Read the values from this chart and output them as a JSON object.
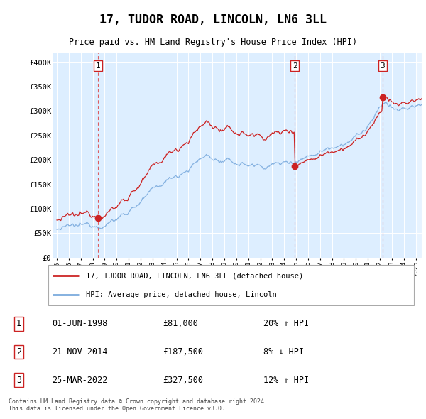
{
  "title": "17, TUDOR ROAD, LINCOLN, LN6 3LL",
  "subtitle": "Price paid vs. HM Land Registry's House Price Index (HPI)",
  "legend_line1": "17, TUDOR ROAD, LINCOLN, LN6 3LL (detached house)",
  "legend_line2": "HPI: Average price, detached house, Lincoln",
  "transactions": [
    {
      "num": 1,
      "date_str": "01-JUN-1998",
      "price": 81000,
      "hpi_rel": "20% ↑ HPI",
      "date_x": 1998.42
    },
    {
      "num": 2,
      "date_str": "21-NOV-2014",
      "price": 187500,
      "hpi_rel": "8% ↓ HPI",
      "date_x": 2014.89
    },
    {
      "num": 3,
      "date_str": "25-MAR-2022",
      "price": 327500,
      "hpi_rel": "12% ↑ HPI",
      "date_x": 2022.23
    }
  ],
  "footer": "Contains HM Land Registry data © Crown copyright and database right 2024.\nThis data is licensed under the Open Government Licence v3.0.",
  "ylim": [
    0,
    420000
  ],
  "yticks": [
    0,
    50000,
    100000,
    150000,
    200000,
    250000,
    300000,
    350000,
    400000
  ],
  "xlim_start": 1994.7,
  "xlim_end": 2025.5,
  "hpi_color": "#7aaadd",
  "price_color": "#cc2222",
  "vline_color": "#dd4444",
  "background_color": "#ddeeff",
  "plot_bg": "#ddeeff"
}
